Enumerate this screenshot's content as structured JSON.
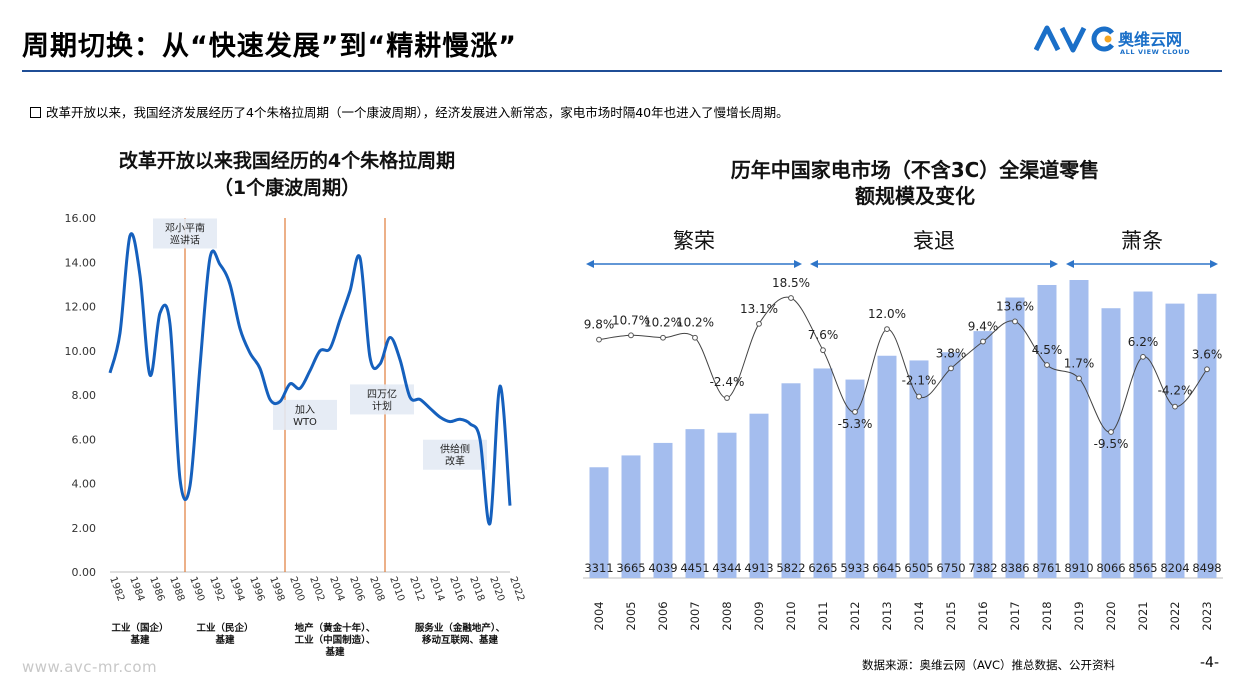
{
  "header": {
    "title": "周期切换：从“快速发展”到“精耕慢涨”",
    "logo_cn": "奥维云网",
    "logo_en": "ALL VIEW CLOUD",
    "logo_mark": "AVC",
    "rule_color": "#1f4e96"
  },
  "note": "改革开放以来，我国经济发展经历了4个朱格拉周期（一个康波周期），经济发展进入新常态，家电市场时隔40年也进入了慢增长周期。",
  "footer": {
    "url": "www.avc-mr.com",
    "source": "数据来源：奥维云网（AVC）推总数据、公开资料",
    "page": "-4-"
  },
  "chart_data": [
    {
      "type": "line",
      "title": "改革开放以来我国经历的4个朱格拉周期",
      "subtitle": "（1个康波周期）",
      "color": "#1560bd",
      "ylim": [
        0,
        16
      ],
      "y_ticks": [
        "16.00",
        "14.00",
        "12.00",
        "10.00",
        "8.00",
        "6.00",
        "4.00",
        "2.00",
        "0.00"
      ],
      "x": [
        1982,
        1983,
        1984,
        1985,
        1986,
        1987,
        1988,
        1989,
        1990,
        1991,
        1992,
        1993,
        1994,
        1995,
        1996,
        1997,
        1998,
        1999,
        2000,
        2001,
        2002,
        2003,
        2004,
        2005,
        2006,
        2007,
        2008,
        2009,
        2010,
        2011,
        2012,
        2013,
        2014,
        2015,
        2016,
        2017,
        2018,
        2019,
        2020,
        2021,
        2022
      ],
      "values": [
        9.0,
        10.8,
        15.2,
        13.4,
        8.9,
        11.7,
        11.2,
        4.2,
        3.9,
        9.3,
        14.2,
        13.9,
        13.0,
        11.0,
        9.9,
        9.2,
        7.8,
        7.7,
        8.5,
        8.3,
        9.1,
        10.0,
        10.1,
        11.4,
        12.7,
        14.2,
        9.7,
        9.4,
        10.6,
        9.6,
        7.9,
        7.8,
        7.4,
        7.0,
        6.8,
        6.9,
        6.7,
        6.0,
        2.2,
        8.4,
        3.0
      ],
      "x_tick_labels": [
        "1982",
        "1984",
        "1986",
        "1988",
        "1990",
        "1992",
        "1994",
        "1996",
        "1998",
        "2000",
        "2002",
        "2004",
        "2006",
        "2008",
        "2010",
        "2012",
        "2014",
        "2016",
        "2018",
        "2020",
        "2022"
      ],
      "vlines": [
        1989.5,
        1999.5,
        2009.5
      ],
      "vline_color": "#e07b39",
      "annotations": [
        {
          "text": "邓小平南\n巡讲话",
          "x": 1989.5,
          "y": 15.3
        },
        {
          "text": "加入\nWTO",
          "x": 2001.5,
          "y": 7.1
        },
        {
          "text": "四万亿\n计划",
          "x": 2009.2,
          "y": 7.8
        },
        {
          "text": "供给侧\n改革",
          "x": 2016.5,
          "y": 5.3
        }
      ],
      "cycle_labels": [
        {
          "text": "工业（国企）\n基建",
          "x": 1985
        },
        {
          "text": "工业（民企）\n基建",
          "x": 1993.5
        },
        {
          "text": "地产（黄金十年）、\n工业（中国制造）、\n基建",
          "x": 2004.5
        },
        {
          "text": "服务业（金融地产）、\n移动互联网、基建",
          "x": 2017
        }
      ]
    },
    {
      "type": "bar",
      "title": "历年中国家电市场（不含3C）全渠道零售",
      "subtitle": "额规模及变化",
      "bar_color": "#a4bdee",
      "line_color": "#444444",
      "categories": [
        "2004",
        "2005",
        "2006",
        "2007",
        "2008",
        "2009",
        "2010",
        "2011",
        "2012",
        "2013",
        "2014",
        "2015",
        "2016",
        "2017",
        "2018",
        "2019",
        "2020",
        "2021",
        "2022",
        "2023"
      ],
      "values": [
        3311,
        3665,
        4039,
        4451,
        4344,
        4913,
        5822,
        6265,
        5933,
        6645,
        6505,
        6750,
        7382,
        8386,
        8761,
        8910,
        8066,
        8565,
        8204,
        8498
      ],
      "growth_pct": [
        9.8,
        10.7,
        10.2,
        10.2,
        -2.4,
        13.1,
        18.5,
        7.6,
        -5.3,
        12.0,
        -2.1,
        3.8,
        9.4,
        13.6,
        4.5,
        1.7,
        -9.5,
        6.2,
        -4.2,
        3.6
      ],
      "growth_labels": [
        "9.8%",
        "10.7%",
        "10.2%",
        "10.2%",
        "-2.4%",
        "13.1%",
        "18.5%",
        "7.6%",
        "-5.3%",
        "12.0%",
        "-2.1%",
        "3.8%",
        "9.4%",
        "13.6%",
        "4.5%",
        "1.7%",
        "-9.5%",
        "6.2%",
        "-4.2%",
        "3.6%"
      ],
      "phases": [
        {
          "name": "繁荣",
          "from": "2004",
          "to": "2010"
        },
        {
          "name": "衰退",
          "from": "2011",
          "to": "2018"
        },
        {
          "name": "萧条",
          "from": "2019",
          "to": "2023"
        }
      ],
      "arrow_color": "#2e75c8"
    }
  ]
}
